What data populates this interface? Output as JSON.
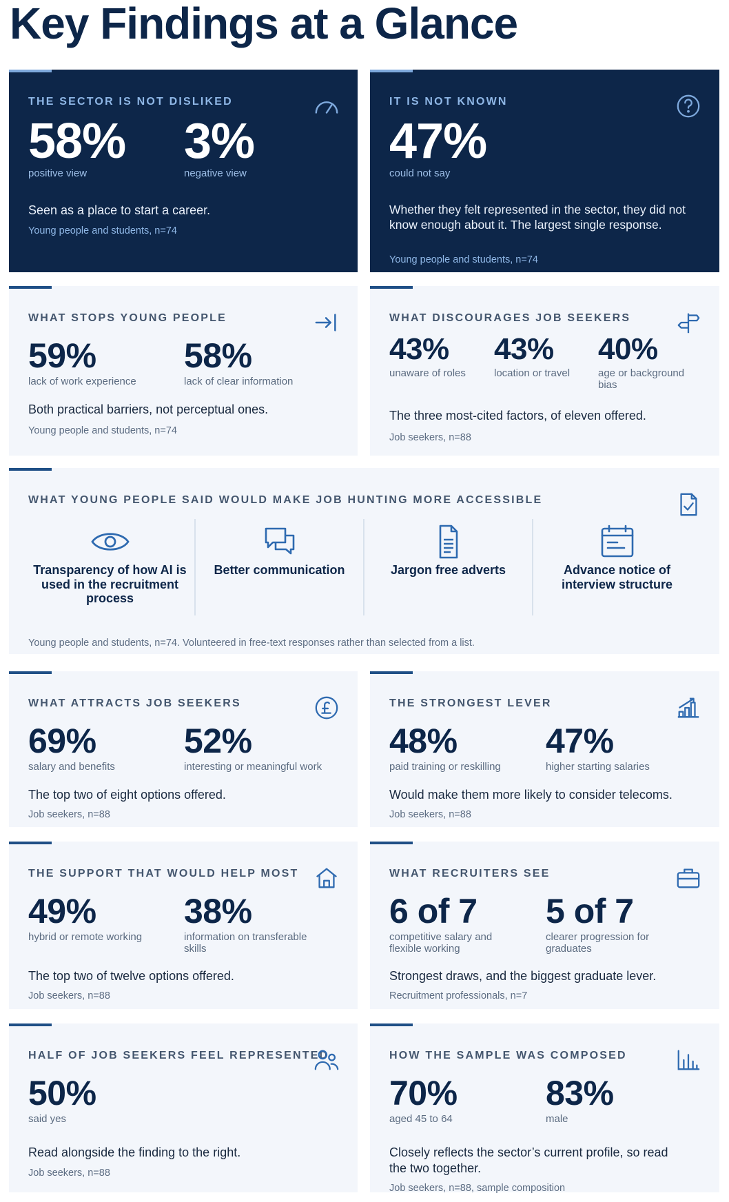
{
  "page_title": "Key Findings at a Glance",
  "colors": {
    "navy": "#0d2649",
    "accent": "#1f4f86",
    "light_accent": "#7ea9dd",
    "card_bg": "#f3f6fb",
    "icon": "#2e6ab0"
  },
  "cards": {
    "not_disliked": {
      "label": "THE SECTOR IS NOT DISLIKED",
      "icon": "gauge-icon",
      "stats": [
        {
          "value": "58%",
          "caption": "positive view"
        },
        {
          "value": "3%",
          "caption": "negative view"
        }
      ],
      "note": "Seen as a place to start a career.",
      "source": "Young people and students, n=74"
    },
    "not_known": {
      "label": "IT IS NOT KNOWN",
      "icon": "question-icon",
      "stats": [
        {
          "value": "47%",
          "caption": "could not say"
        }
      ],
      "note": "Whether they felt represented in the sector, they did not know enough about it. The largest single response.",
      "source": "Young people and students, n=74"
    },
    "stops_young": {
      "label": "WHAT STOPS YOUNG PEOPLE",
      "icon": "arrow-to-line-icon",
      "stats": [
        {
          "value": "59%",
          "caption": "lack of work experience"
        },
        {
          "value": "58%",
          "caption": "lack of clear information"
        }
      ],
      "note": "Both practical barriers, not perceptual ones.",
      "source": "Young people and students, n=74"
    },
    "discourages": {
      "label": "WHAT DISCOURAGES JOB SEEKERS",
      "icon": "signpost-icon",
      "stats": [
        {
          "value": "43%",
          "caption": "unaware of roles"
        },
        {
          "value": "43%",
          "caption": "location or travel"
        },
        {
          "value": "40%",
          "caption": "age or background bias"
        }
      ],
      "note": "The three most-cited factors, of eleven offered.",
      "source": "Job seekers, n=88"
    },
    "accessible": {
      "label": "WHAT YOUNG PEOPLE SAID WOULD MAKE JOB HUNTING MORE ACCESSIBLE",
      "icon": "document-check-icon",
      "items": [
        {
          "icon": "eye-icon",
          "label": "Transparency of how AI is used in the recruitment process"
        },
        {
          "icon": "chat-icon",
          "label": "Better communication"
        },
        {
          "icon": "document-icon",
          "label": "Jargon free adverts"
        },
        {
          "icon": "calendar-icon",
          "label": "Advance notice of interview structure"
        }
      ],
      "source": "Young people and students, n=74. Volunteered in free-text responses rather than selected from a list."
    },
    "attracts": {
      "label": "WHAT ATTRACTS JOB SEEKERS",
      "icon": "pound-coin-icon",
      "stats": [
        {
          "value": "69%",
          "caption": "salary and benefits"
        },
        {
          "value": "52%",
          "caption": "interesting or meaningful work"
        }
      ],
      "note": "The top two of eight options offered.",
      "source": "Job seekers, n=88"
    },
    "strongest_lever": {
      "label": "THE STRONGEST LEVER",
      "icon": "bar-chart-up-icon",
      "stats": [
        {
          "value": "48%",
          "caption": "paid training or reskilling"
        },
        {
          "value": "47%",
          "caption": "higher starting salaries"
        }
      ],
      "note": "Would make them more likely to consider telecoms.",
      "source": "Job seekers, n=88"
    },
    "support": {
      "label": "THE SUPPORT THAT WOULD HELP MOST",
      "icon": "home-icon",
      "stats": [
        {
          "value": "49%",
          "caption": "hybrid or remote working"
        },
        {
          "value": "38%",
          "caption": "information on transferable skills"
        }
      ],
      "note": "The top two of twelve options offered.",
      "source": "Job seekers, n=88"
    },
    "recruiters": {
      "label": "WHAT RECRUITERS SEE",
      "icon": "briefcase-icon",
      "stats": [
        {
          "value": "6 of 7",
          "caption": "competitive salary and flexible working"
        },
        {
          "value": "5 of 7",
          "caption": "clearer progression for graduates"
        }
      ],
      "note": "Strongest draws, and the biggest graduate lever.",
      "source": "Recruitment professionals, n=7"
    },
    "represented": {
      "label": "HALF OF JOB SEEKERS FEEL REPRESENTED",
      "icon": "users-icon",
      "stats": [
        {
          "value": "50%",
          "caption": "said yes"
        }
      ],
      "note": "Read alongside the finding to the right.",
      "source": "Job seekers, n=88"
    },
    "sample": {
      "label": "HOW THE SAMPLE WAS COMPOSED",
      "icon": "bar-chart-icon",
      "stats": [
        {
          "value": "70%",
          "caption": "aged 45 to 64"
        },
        {
          "value": "83%",
          "caption": "male"
        }
      ],
      "note": "Closely reflects the sector’s current profile, so read the two together.",
      "source": "Job seekers, n=88, sample composition"
    }
  }
}
